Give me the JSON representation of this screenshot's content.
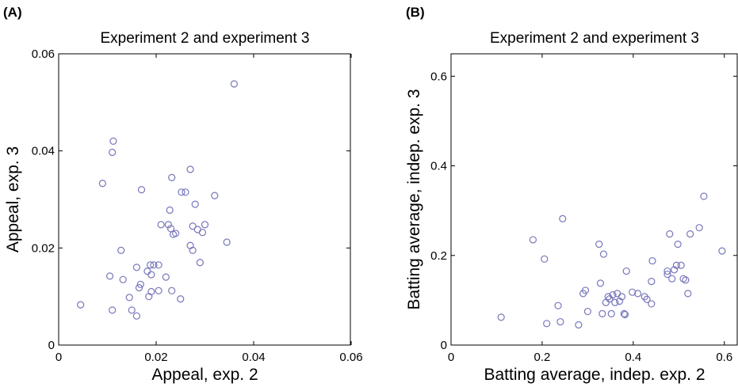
{
  "panels": [
    {
      "tag": "(A)"
    },
    {
      "tag": "(B)"
    }
  ],
  "chart_data": [
    {
      "type": "scatter",
      "title": "Experiment 2 and experiment 3",
      "xlabel": "Appeal, exp. 2",
      "ylabel": "Appeal, exp. 3",
      "xlim": [
        0,
        0.06
      ],
      "ylim": [
        0,
        0.06
      ],
      "xticks": [
        "0",
        "0.02",
        "0.04",
        "0.06"
      ],
      "yticks": [
        "0",
        "0.02",
        "0.04",
        "0.06"
      ],
      "xtick_values": [
        0,
        0.02,
        0.04,
        0.06
      ],
      "ytick_values": [
        0,
        0.02,
        0.04,
        0.06
      ],
      "grid": false,
      "marker_color": "#7777bb",
      "points": [
        [
          0.0045,
          0.0083
        ],
        [
          0.009,
          0.0333
        ],
        [
          0.0105,
          0.0142
        ],
        [
          0.011,
          0.0397
        ],
        [
          0.0112,
          0.042
        ],
        [
          0.011,
          0.0072
        ],
        [
          0.0128,
          0.0195
        ],
        [
          0.0132,
          0.0135
        ],
        [
          0.0145,
          0.0098
        ],
        [
          0.015,
          0.0072
        ],
        [
          0.016,
          0.016
        ],
        [
          0.016,
          0.006
        ],
        [
          0.0165,
          0.0118
        ],
        [
          0.0168,
          0.0125
        ],
        [
          0.017,
          0.032
        ],
        [
          0.0182,
          0.0152
        ],
        [
          0.0185,
          0.01
        ],
        [
          0.0188,
          0.0165
        ],
        [
          0.019,
          0.0145
        ],
        [
          0.019,
          0.011
        ],
        [
          0.0195,
          0.0165
        ],
        [
          0.0205,
          0.0165
        ],
        [
          0.0205,
          0.0112
        ],
        [
          0.021,
          0.0248
        ],
        [
          0.022,
          0.014
        ],
        [
          0.0225,
          0.0248
        ],
        [
          0.0228,
          0.0278
        ],
        [
          0.023,
          0.024
        ],
        [
          0.0232,
          0.0112
        ],
        [
          0.0232,
          0.0345
        ],
        [
          0.0235,
          0.0228
        ],
        [
          0.024,
          0.023
        ],
        [
          0.025,
          0.0095
        ],
        [
          0.0252,
          0.0315
        ],
        [
          0.026,
          0.0315
        ],
        [
          0.027,
          0.0362
        ],
        [
          0.027,
          0.0205
        ],
        [
          0.0275,
          0.0245
        ],
        [
          0.0275,
          0.0195
        ],
        [
          0.028,
          0.029
        ],
        [
          0.0285,
          0.0238
        ],
        [
          0.029,
          0.017
        ],
        [
          0.0295,
          0.0232
        ],
        [
          0.03,
          0.0248
        ],
        [
          0.032,
          0.0308
        ],
        [
          0.0345,
          0.0212
        ],
        [
          0.036,
          0.0538
        ]
      ]
    },
    {
      "type": "scatter",
      "title": "Experiment 2 and experiment 3",
      "xlabel": "Batting average, indep. exp. 2",
      "ylabel": "Batting average, indep. exp. 3",
      "xlim": [
        0,
        0.63
      ],
      "ylim": [
        0,
        0.65
      ],
      "xticks": [
        "0",
        "0.2",
        "0.4",
        "0.6"
      ],
      "yticks": [
        "0",
        "0.2",
        "0.4",
        "0.6"
      ],
      "xtick_values": [
        0,
        0.2,
        0.4,
        0.6
      ],
      "ytick_values": [
        0,
        0.2,
        0.4,
        0.6
      ],
      "grid": false,
      "marker_color": "#7777bb",
      "points": [
        [
          0.11,
          0.062
        ],
        [
          0.18,
          0.235
        ],
        [
          0.205,
          0.192
        ],
        [
          0.21,
          0.048
        ],
        [
          0.235,
          0.088
        ],
        [
          0.24,
          0.052
        ],
        [
          0.245,
          0.282
        ],
        [
          0.28,
          0.045
        ],
        [
          0.29,
          0.115
        ],
        [
          0.295,
          0.122
        ],
        [
          0.3,
          0.075
        ],
        [
          0.325,
          0.225
        ],
        [
          0.328,
          0.138
        ],
        [
          0.332,
          0.07
        ],
        [
          0.335,
          0.203
        ],
        [
          0.34,
          0.095
        ],
        [
          0.345,
          0.108
        ],
        [
          0.348,
          0.103
        ],
        [
          0.352,
          0.07
        ],
        [
          0.355,
          0.112
        ],
        [
          0.36,
          0.095
        ],
        [
          0.365,
          0.115
        ],
        [
          0.37,
          0.098
        ],
        [
          0.375,
          0.108
        ],
        [
          0.38,
          0.07
        ],
        [
          0.382,
          0.068
        ],
        [
          0.385,
          0.165
        ],
        [
          0.398,
          0.118
        ],
        [
          0.41,
          0.115
        ],
        [
          0.425,
          0.108
        ],
        [
          0.43,
          0.102
        ],
        [
          0.44,
          0.092
        ],
        [
          0.44,
          0.142
        ],
        [
          0.442,
          0.188
        ],
        [
          0.475,
          0.165
        ],
        [
          0.475,
          0.158
        ],
        [
          0.48,
          0.248
        ],
        [
          0.485,
          0.148
        ],
        [
          0.49,
          0.168
        ],
        [
          0.495,
          0.178
        ],
        [
          0.498,
          0.225
        ],
        [
          0.505,
          0.178
        ],
        [
          0.51,
          0.148
        ],
        [
          0.515,
          0.145
        ],
        [
          0.52,
          0.115
        ],
        [
          0.525,
          0.248
        ],
        [
          0.545,
          0.262
        ],
        [
          0.555,
          0.332
        ],
        [
          0.595,
          0.21
        ]
      ]
    }
  ]
}
